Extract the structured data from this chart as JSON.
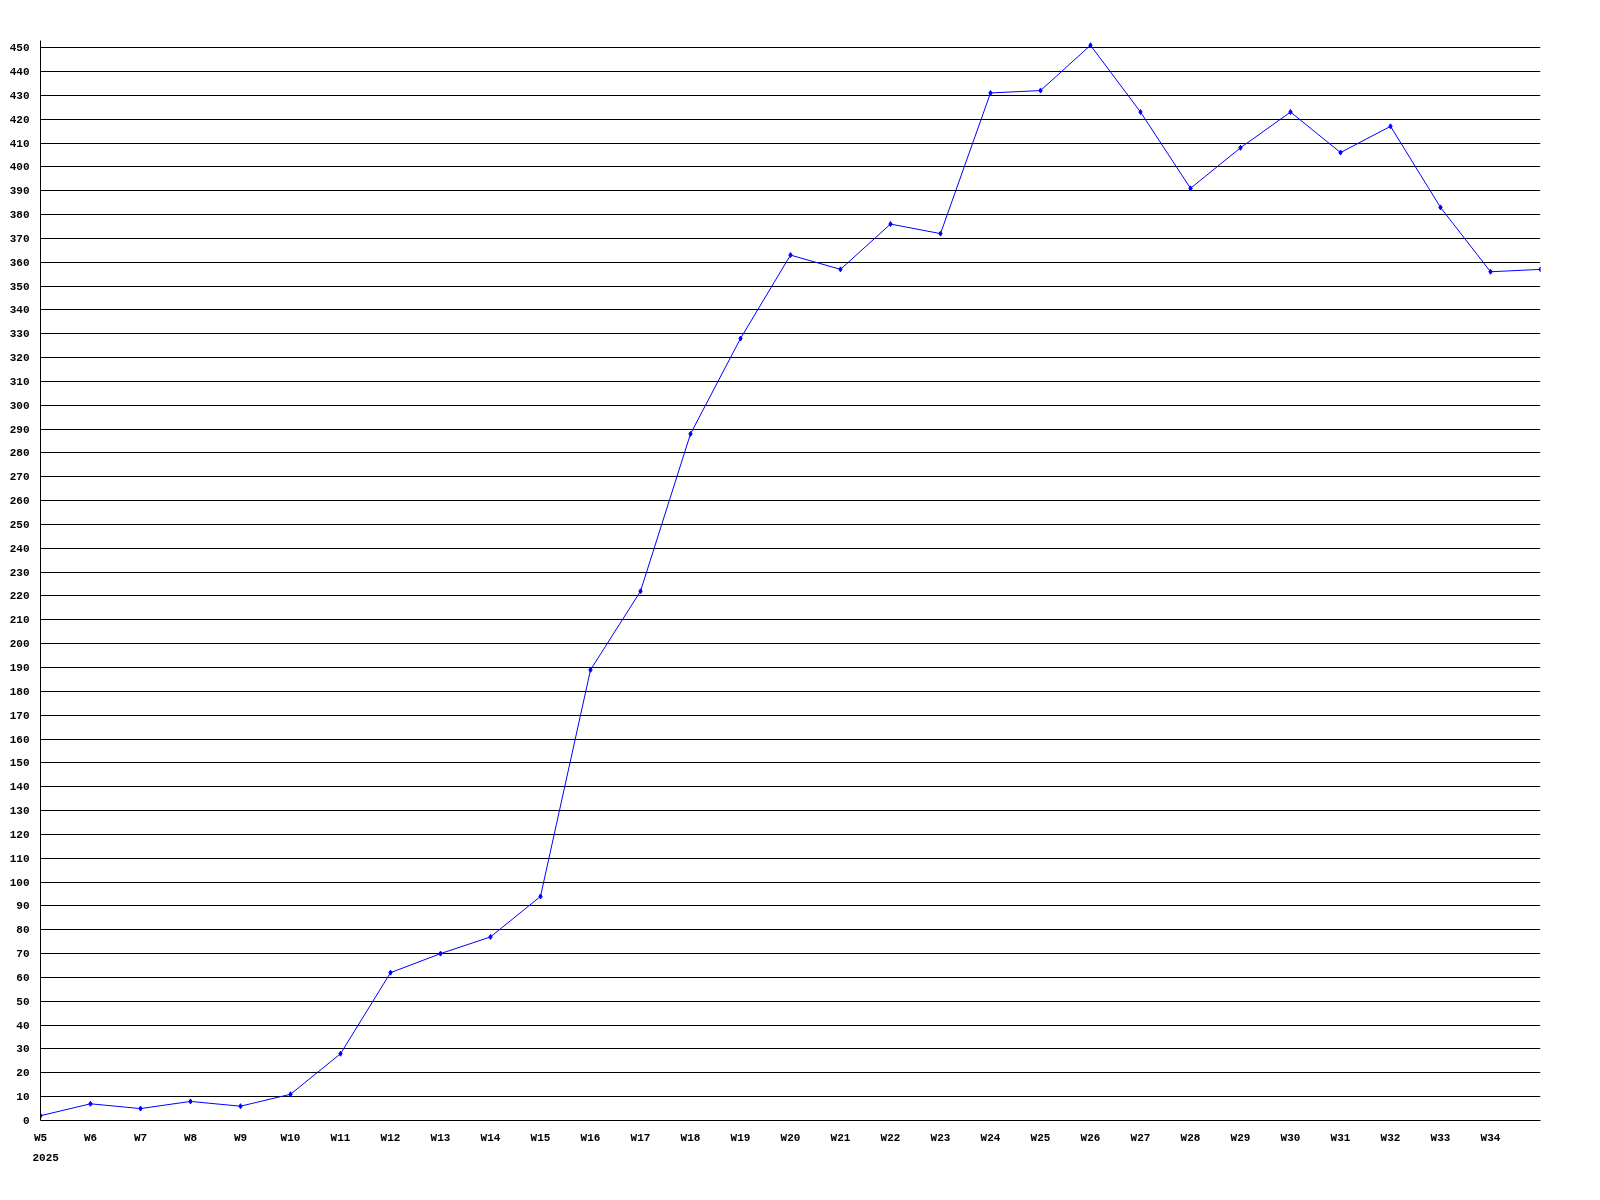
{
  "chart_data": {
    "type": "line",
    "categories": [
      "W5",
      "W6",
      "W7",
      "W8",
      "W9",
      "W10",
      "W11",
      "W12",
      "W13",
      "W14",
      "W15",
      "W16",
      "W17",
      "W18",
      "W19",
      "W20",
      "W21",
      "W22",
      "W23",
      "W24",
      "W25",
      "W26",
      "W27",
      "W28",
      "W29",
      "W30",
      "W31",
      "W32",
      "W33",
      "W34",
      null
    ],
    "series": [
      {
        "color": "#0000ff",
        "values": [
          2,
          7,
          5,
          8,
          6,
          11,
          28,
          62,
          70,
          77,
          94,
          189,
          222,
          288,
          328,
          363,
          357,
          376,
          372,
          431,
          432,
          451,
          423,
          391,
          408,
          423,
          406,
          417,
          383,
          356,
          357
        ]
      }
    ],
    "ylim": [
      0,
      453
    ],
    "yticks": [
      0,
      10,
      20,
      30,
      40,
      50,
      60,
      70,
      80,
      90,
      100,
      110,
      120,
      130,
      140,
      150,
      160,
      170,
      180,
      190,
      200,
      210,
      220,
      230,
      240,
      250,
      260,
      270,
      280,
      290,
      300,
      310,
      320,
      330,
      340,
      350,
      360,
      370,
      380,
      390,
      400,
      410,
      420,
      430,
      440,
      450
    ],
    "grid": "y",
    "marker": "diamond",
    "line_style": "solid",
    "annotations": [
      "2025"
    ]
  }
}
